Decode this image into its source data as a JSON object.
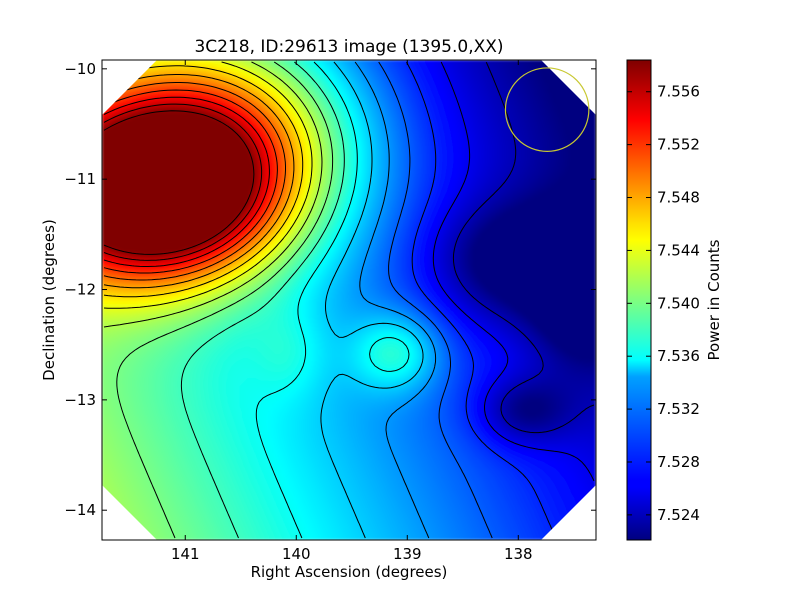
{
  "chart_data": {
    "type": "heatmap",
    "title": "3C218, ID:29613 image (1395.0,XX)",
    "xlabel": "Right Ascension (degrees)",
    "ylabel": "Declination (degrees)",
    "xlim": [
      141.75,
      137.3
    ],
    "ylim": [
      -14.27,
      -9.92
    ],
    "x_ticks": [
      141,
      140,
      139,
      138
    ],
    "y_ticks": [
      -10,
      -11,
      -12,
      -13,
      -14
    ],
    "colorbar": {
      "label": "Power in Counts",
      "range": [
        7.5221,
        7.5584
      ],
      "ticks": [
        7.524,
        7.528,
        7.532,
        7.536,
        7.54,
        7.544,
        7.548,
        7.552,
        7.556
      ],
      "colormap": "jet"
    },
    "features": [
      {
        "kind": "max",
        "ra": 141.3,
        "dec": -11.15,
        "value": 7.558
      },
      {
        "kind": "local-max",
        "ra": 139.1,
        "dec": -12.57,
        "value": 7.538
      },
      {
        "kind": "local-max",
        "ra": 140.05,
        "dec": -12.57,
        "value": 7.534
      },
      {
        "kind": "min",
        "ra": 138.05,
        "dec": -11.75,
        "value": 7.5225
      },
      {
        "kind": "min",
        "ra": 137.95,
        "dec": -13.1,
        "value": 7.5235
      },
      {
        "kind": "min",
        "ra": 137.45,
        "dec": -12.1,
        "value": 7.524
      }
    ],
    "marker": {
      "shape": "circle",
      "ra": 137.74,
      "dec": -10.37,
      "radius_deg": 0.35,
      "color": "#c8c832"
    },
    "grid": false,
    "legend": "none"
  }
}
